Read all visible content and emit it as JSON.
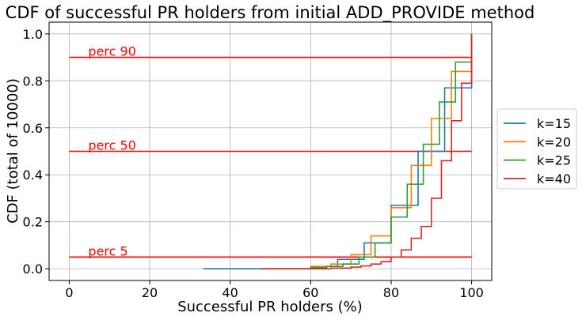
{
  "chart_data": {
    "type": "line",
    "title": "CDF of successful PR holders from initial ADD_PROVIDE method",
    "xlabel": "Successful PR holders (%)",
    "ylabel": "CDF (total of 10000)",
    "xlim": [
      -5,
      105
    ],
    "ylim": [
      -0.05,
      1.05
    ],
    "xticks": [
      0,
      20,
      40,
      60,
      80,
      100
    ],
    "xtick_labels": [
      "0",
      "20",
      "40",
      "60",
      "80",
      "100"
    ],
    "yticks": [
      0.0,
      0.2,
      0.4,
      0.6,
      0.8,
      1.0
    ],
    "ytick_labels": [
      "0.0",
      "0.2",
      "0.4",
      "0.6",
      "0.8",
      "1.0"
    ],
    "grid": true,
    "legend_position": "right-outside",
    "series": [
      {
        "name": "k=15",
        "color": "#1f77b4",
        "x": [
          33.3,
          60.0,
          66.7,
          73.3,
          80.0,
          86.7,
          93.3,
          100.0
        ],
        "y": [
          0.0,
          0.01,
          0.04,
          0.11,
          0.27,
          0.5,
          0.77,
          1.0
        ]
      },
      {
        "name": "k=20",
        "color": "#ff7f0e",
        "x": [
          50.0,
          60.0,
          65.0,
          70.0,
          75.0,
          80.0,
          85.0,
          90.0,
          95.0,
          100.0
        ],
        "y": [
          0.0,
          0.01,
          0.02,
          0.06,
          0.14,
          0.26,
          0.44,
          0.64,
          0.84,
          1.0
        ]
      },
      {
        "name": "k=25",
        "color": "#2ca02c",
        "x": [
          48.0,
          60.0,
          64.0,
          68.0,
          72.0,
          76.0,
          80.0,
          84.0,
          88.0,
          92.0,
          96.0,
          100.0
        ],
        "y": [
          0.0,
          0.005,
          0.01,
          0.02,
          0.05,
          0.11,
          0.22,
          0.36,
          0.53,
          0.71,
          0.88,
          1.0
        ]
      },
      {
        "name": "k=40",
        "color": "#d62728",
        "x": [
          47.5,
          65.0,
          70.0,
          72.5,
          75.0,
          77.5,
          80.0,
          82.5,
          85.0,
          87.5,
          90.0,
          92.5,
          95.0,
          97.5,
          100.0
        ],
        "y": [
          0.0,
          0.003,
          0.007,
          0.012,
          0.02,
          0.03,
          0.05,
          0.08,
          0.13,
          0.18,
          0.3,
          0.46,
          0.63,
          0.79,
          1.0
        ]
      }
    ],
    "reference_lines": [
      {
        "y": 0.9,
        "label": "perc 90",
        "x_start": 0,
        "x_end": 100,
        "color": "#ff0000"
      },
      {
        "y": 0.5,
        "label": "perc 50",
        "x_start": 0,
        "x_end": 100,
        "color": "#ff0000"
      },
      {
        "y": 0.05,
        "label": "perc 5",
        "x_start": 0,
        "x_end": 100,
        "color": "#ff0000"
      }
    ]
  }
}
